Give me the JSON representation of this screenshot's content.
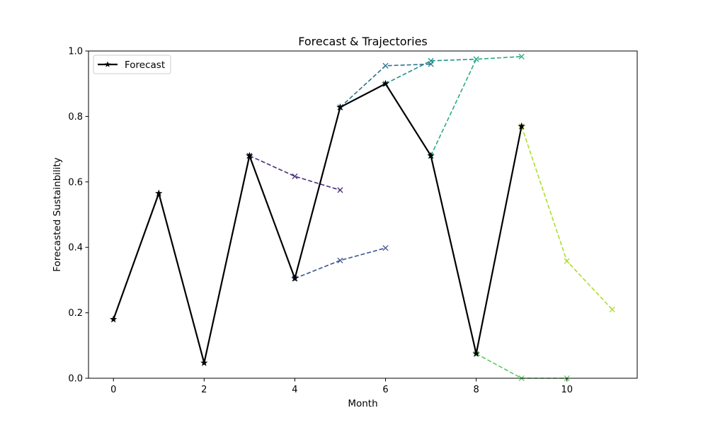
{
  "chart_data": {
    "type": "line",
    "title": "Forecast & Trajectories",
    "xlabel": "Month",
    "ylabel": "Forecasted Sustainbility",
    "xlim": [
      -0.55,
      11.55
    ],
    "ylim": [
      0,
      1.0
    ],
    "xticks": [
      0,
      2,
      4,
      6,
      8,
      10
    ],
    "xtick_labels": [
      "0",
      "2",
      "4",
      "6",
      "8",
      "10"
    ],
    "yticks": [
      0,
      0.2,
      0.4,
      0.6,
      0.8,
      1.0
    ],
    "ytick_labels": [
      "0.0",
      "0.2",
      "0.4",
      "0.6",
      "0.8",
      "1.0"
    ],
    "grid": false,
    "legend_position": "top-left",
    "forecast": {
      "name": "Forecast",
      "color": "#000000",
      "marker": "star",
      "x": [
        0,
        1,
        2,
        3,
        4,
        5,
        6,
        7,
        8,
        9
      ],
      "y": [
        0.18,
        0.565,
        0.047,
        0.68,
        0.305,
        0.828,
        0.9,
        0.68,
        0.075,
        0.77
      ]
    },
    "trajectories": [
      {
        "color": "#472d7b",
        "marker": "x",
        "x": [
          3,
          4,
          5
        ],
        "y": [
          0.68,
          0.617,
          0.575
        ]
      },
      {
        "color": "#3b528b",
        "marker": "x",
        "x": [
          4,
          5,
          6
        ],
        "y": [
          0.305,
          0.36,
          0.398
        ]
      },
      {
        "color": "#2c728e",
        "marker": "x",
        "x": [
          5,
          6,
          7
        ],
        "y": [
          0.828,
          0.955,
          0.96
        ]
      },
      {
        "color": "#21918c",
        "marker": "x",
        "x": [
          6,
          7,
          8
        ],
        "y": [
          0.9,
          0.97,
          0.975
        ]
      },
      {
        "color": "#28ae80",
        "marker": "x",
        "x": [
          7,
          8,
          9
        ],
        "y": [
          0.68,
          0.975,
          0.983
        ]
      },
      {
        "color": "#5ec962",
        "marker": "x",
        "x": [
          8,
          9,
          10
        ],
        "y": [
          0.075,
          0.0,
          0.0
        ]
      },
      {
        "color": "#addc30",
        "marker": "x",
        "x": [
          9,
          10,
          11
        ],
        "y": [
          0.77,
          0.358,
          0.21
        ]
      }
    ]
  }
}
